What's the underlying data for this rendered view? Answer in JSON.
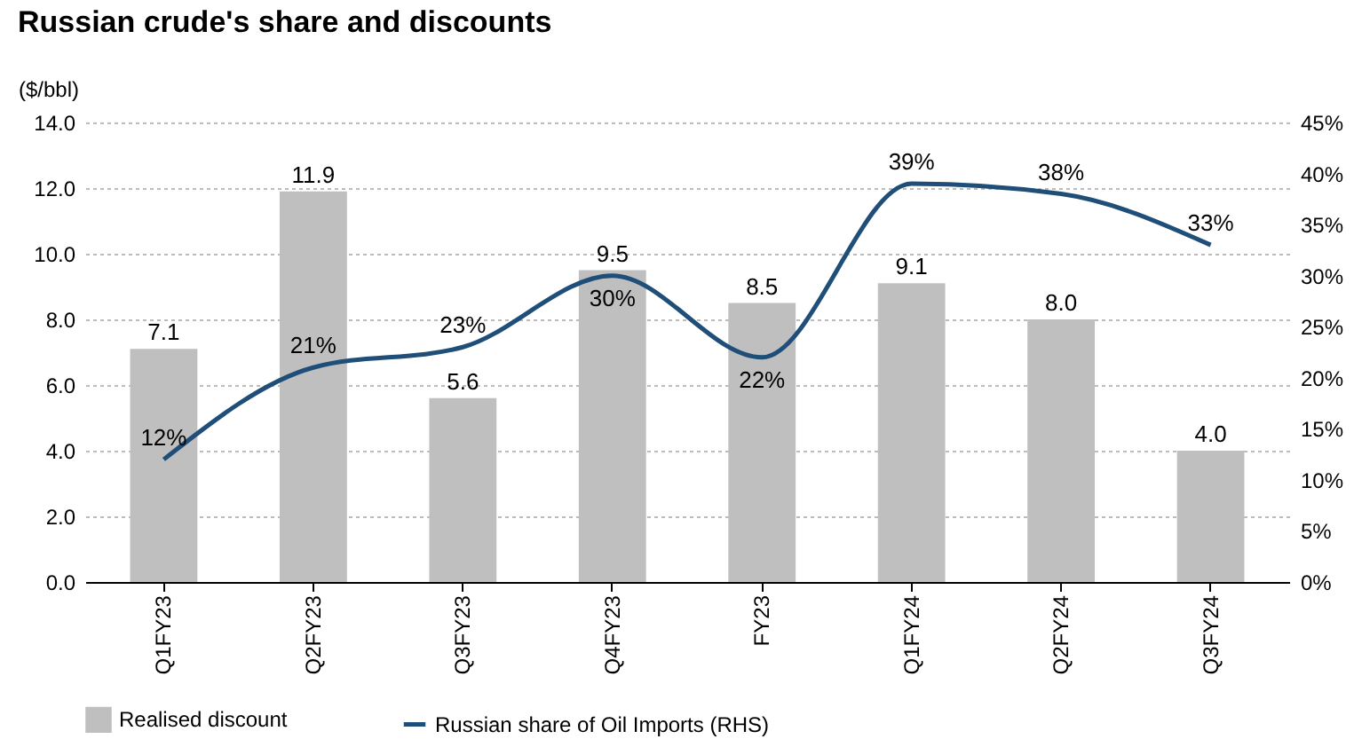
{
  "chart_data": {
    "type": "bar",
    "title": "Russian crude's share and discounts",
    "ylabel": "($/bbl)",
    "categories": [
      "Q1FY23",
      "Q2FY23",
      "Q3FY23",
      "Q4FY23",
      "FY23",
      "Q1FY24",
      "Q2FY24",
      "Q3FY24"
    ],
    "series": [
      {
        "name": "Realised discount",
        "type": "bar",
        "color": "#bfbfbf",
        "values": [
          7.1,
          11.9,
          5.6,
          9.5,
          8.5,
          9.1,
          8.0,
          4.0
        ],
        "value_labels": [
          "7.1",
          "11.9",
          "5.6",
          "9.5",
          "8.5",
          "9.1",
          "8.0",
          "4.0"
        ]
      },
      {
        "name": "Russian share of Oil Imports (RHS)",
        "type": "line",
        "axis": "y2",
        "color": "#1f4e79",
        "values": [
          12,
          21,
          23,
          30,
          22,
          39,
          38,
          33
        ],
        "value_labels": [
          "12%",
          "21%",
          "23%",
          "30%",
          "22%",
          "39%",
          "38%",
          "33%"
        ]
      }
    ],
    "ylim": [
      0,
      14
    ],
    "yticks": [
      {
        "value": 0,
        "label": "0.0"
      },
      {
        "value": 2,
        "label": "2.0"
      },
      {
        "value": 4,
        "label": "4.0"
      },
      {
        "value": 6,
        "label": "6.0"
      },
      {
        "value": 8,
        "label": "8.0"
      },
      {
        "value": 10,
        "label": "10.0"
      },
      {
        "value": 12,
        "label": "12.0"
      },
      {
        "value": 14,
        "label": "14.0"
      }
    ],
    "y2lim": [
      0,
      45
    ],
    "y2ticks": [
      {
        "value": 0,
        "label": "0%"
      },
      {
        "value": 5,
        "label": "5%"
      },
      {
        "value": 10,
        "label": "10%"
      },
      {
        "value": 15,
        "label": "15%"
      },
      {
        "value": 20,
        "label": "20%"
      },
      {
        "value": 25,
        "label": "25%"
      },
      {
        "value": 30,
        "label": "30%"
      },
      {
        "value": 35,
        "label": "35%"
      },
      {
        "value": 40,
        "label": "40%"
      },
      {
        "value": 45,
        "label": "45%"
      }
    ],
    "grid": "y",
    "legend": "bottom",
    "line_style": "solid",
    "marker": "none"
  }
}
